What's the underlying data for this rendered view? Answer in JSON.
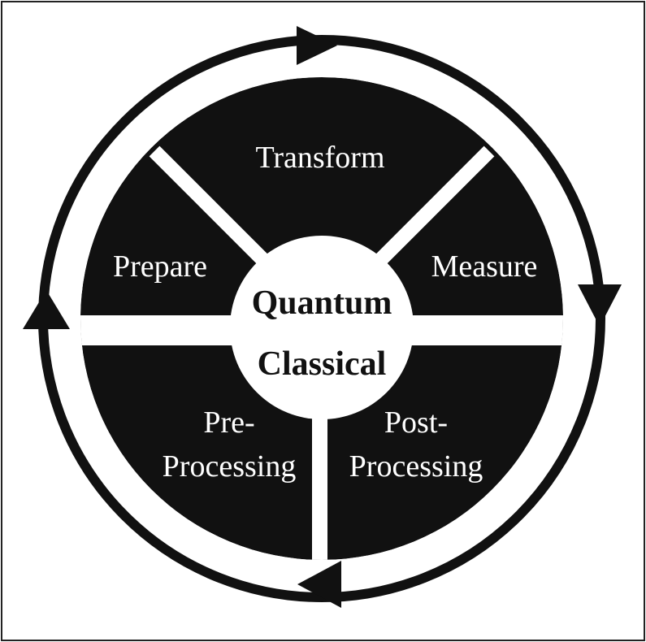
{
  "diagram": {
    "colors": {
      "segment_fill": "#111111",
      "center_fill": "#ffffff",
      "cycle_ring": "#111111",
      "frame_border": "#222222"
    },
    "center": {
      "top_label": "Quantum",
      "bottom_label": "Classical"
    },
    "segments": {
      "prepare": "Prepare",
      "transform": "Transform",
      "measure": "Measure",
      "pre_processing_line1": "Pre-",
      "pre_processing_line2": "Processing",
      "post_processing_line1": "Post-",
      "post_processing_line2": "Processing"
    },
    "cycle": {
      "direction": "clockwise",
      "arrowheads": [
        "top",
        "right",
        "bottom",
        "left"
      ]
    }
  }
}
